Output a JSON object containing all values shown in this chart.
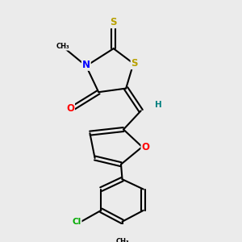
{
  "background_color": "#ebebeb",
  "atom_colors": {
    "S": "#b8a000",
    "N": "#0000ff",
    "O": "#ff0000",
    "Cl": "#00aa00",
    "H": "#008080"
  },
  "bond_color": "#000000",
  "bond_lw": 1.5,
  "figsize": [
    3.0,
    3.0
  ],
  "dpi": 100
}
